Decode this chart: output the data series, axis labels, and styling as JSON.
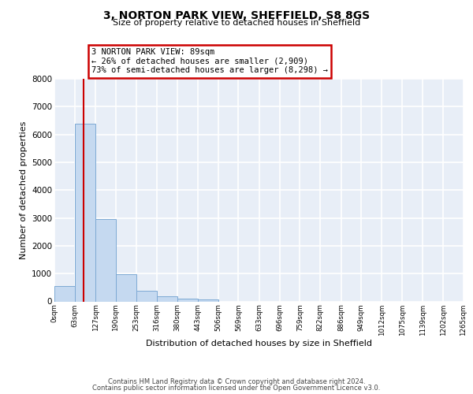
{
  "title": "3, NORTON PARK VIEW, SHEFFIELD, S8 8GS",
  "subtitle": "Size of property relative to detached houses in Sheffield",
  "xlabel": "Distribution of detached houses by size in Sheffield",
  "ylabel": "Number of detached properties",
  "bar_edges": [
    0,
    63,
    127,
    190,
    253,
    316,
    380,
    443,
    506,
    569,
    633,
    696,
    759,
    822,
    886,
    949,
    1012,
    1075,
    1139,
    1202,
    1265
  ],
  "bar_heights": [
    560,
    6400,
    2950,
    975,
    380,
    185,
    100,
    60,
    0,
    0,
    0,
    0,
    0,
    0,
    0,
    0,
    0,
    0,
    0,
    0
  ],
  "tick_labels": [
    "0sqm",
    "63sqm",
    "127sqm",
    "190sqm",
    "253sqm",
    "316sqm",
    "380sqm",
    "443sqm",
    "506sqm",
    "569sqm",
    "633sqm",
    "696sqm",
    "759sqm",
    "822sqm",
    "886sqm",
    "949sqm",
    "1012sqm",
    "1075sqm",
    "1139sqm",
    "1202sqm",
    "1265sqm"
  ],
  "property_size": 89,
  "property_line_color": "#cc0000",
  "bar_color": "#c5d9f0",
  "bar_edge_color": "#7da9d4",
  "annotation_text": "3 NORTON PARK VIEW: 89sqm\n← 26% of detached houses are smaller (2,909)\n73% of semi-detached houses are larger (8,298) →",
  "annotation_box_color": "#cc0000",
  "ylim": [
    0,
    8000
  ],
  "yticks": [
    0,
    1000,
    2000,
    3000,
    4000,
    5000,
    6000,
    7000,
    8000
  ],
  "footer_line1": "Contains HM Land Registry data © Crown copyright and database right 2024.",
  "footer_line2": "Contains public sector information licensed under the Open Government Licence v3.0.",
  "background_color": "#e8eef7",
  "grid_color": "#ffffff",
  "fig_background": "#ffffff"
}
